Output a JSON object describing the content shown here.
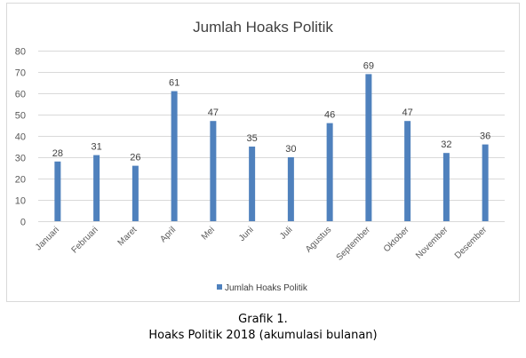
{
  "chart_data": {
    "type": "bar",
    "title": "Jumlah Hoaks Politik",
    "xlabel": "",
    "ylabel": "",
    "categories": [
      "Januari",
      "Februari",
      "Maret",
      "April",
      "Mei",
      "Juni",
      "Juli",
      "Agustus",
      "September",
      "Oktober",
      "November",
      "Desember"
    ],
    "series": [
      {
        "name": "Jumlah Hoaks Politik",
        "values": [
          28,
          31,
          26,
          61,
          47,
          35,
          30,
          46,
          69,
          47,
          32,
          36
        ]
      }
    ],
    "ylim": [
      0,
      80
    ],
    "yticks": [
      0,
      10,
      20,
      30,
      40,
      50,
      60,
      70,
      80
    ],
    "grid": true,
    "legend": "bottom",
    "bar_color": "#4f81bd",
    "data_labels": true
  },
  "caption": {
    "line1": "Grafik 1.",
    "line2": "Hoaks Politik 2018 (akumulasi bulanan)"
  }
}
